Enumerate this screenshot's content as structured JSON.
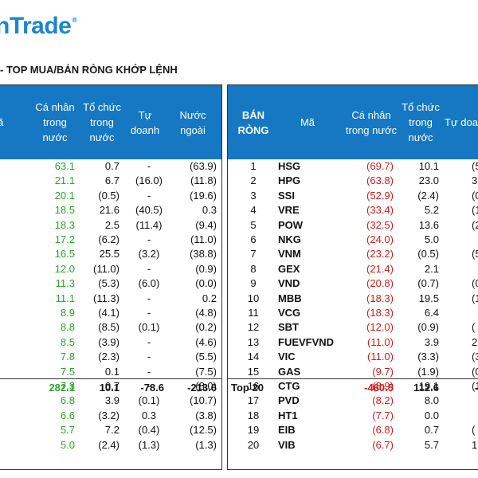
{
  "logo": {
    "text": "nTrade",
    "reg": "®"
  },
  "section_title": "- TOP MUA/BÁN RÒNG KHỚP LỆNH",
  "left_table": {
    "headers": [
      "ã",
      "Cá nhân\ntrong\nnước",
      "Tổ chức\ntrong\nnước",
      "Tự\ndoanh",
      "Nước\nngoài"
    ],
    "rows": [
      [
        "63.1",
        "0.7",
        "-",
        "(63.9)"
      ],
      [
        "21.1",
        "6.7",
        "(16.0)",
        "(11.8)"
      ],
      [
        "20.1",
        "(0.5)",
        "-",
        "(19.6)"
      ],
      [
        "18.5",
        "21.6",
        "(40.5)",
        "0.3"
      ],
      [
        "18.3",
        "2.5",
        "(11.4)",
        "(9.4)"
      ],
      [
        "17.2",
        "(6.2)",
        "-",
        "(11.0)"
      ],
      [
        "16.5",
        "25.5",
        "(3.2)",
        "(38.8)"
      ],
      [
        "12.0",
        "(11.0)",
        "-",
        "(0.9)"
      ],
      [
        "11.3",
        "(5.3)",
        "(6.0)",
        "(0.0)"
      ],
      [
        "11.1",
        "(11.3)",
        "-",
        "0.2"
      ],
      [
        "8.9",
        "(4.1)",
        "-",
        "(4.8)"
      ],
      [
        "8.8",
        "(8.5)",
        "(0.1)",
        "(0.2)"
      ],
      [
        "8.5",
        "(3.9)",
        "-",
        "(4.6)"
      ],
      [
        "7.8",
        "(2.3)",
        "-",
        "(5.5)"
      ],
      [
        "7.5",
        "0.1",
        "-",
        "(7.5)"
      ],
      [
        "7.3",
        "0.7",
        "-",
        "(8.0)"
      ],
      [
        "6.8",
        "3.9",
        "(0.1)",
        "(10.7)"
      ],
      [
        "6.6",
        "(3.2)",
        "0.3",
        "(3.8)"
      ],
      [
        "5.7",
        "7.2",
        "(0.4)",
        "(12.5)"
      ],
      [
        "5.0",
        "(2.4)",
        "(1.3)",
        "(1.3)"
      ]
    ],
    "total": [
      "282.1",
      "10.1",
      "-78.6",
      "-213.6"
    ]
  },
  "right_table": {
    "headers": [
      "BÁN\nRÒNG",
      "Mã",
      "Cá nhân\ntrong nước",
      "Tổ chức\ntrong\nnước",
      "Tự doa"
    ],
    "rows": [
      [
        "1",
        "HSG",
        "(69.7)",
        "10.1",
        "(5"
      ],
      [
        "2",
        "HPG",
        "(63.8)",
        "23.0",
        "3"
      ],
      [
        "3",
        "SSI",
        "(52.9)",
        "(2.4)",
        "(0"
      ],
      [
        "4",
        "VRE",
        "(33.4)",
        "5.2",
        "(1"
      ],
      [
        "5",
        "POW",
        "(32.5)",
        "13.6",
        "(20"
      ],
      [
        "6",
        "NKG",
        "(24.0)",
        "5.0",
        ""
      ],
      [
        "7",
        "VNM",
        "(23.2)",
        "(0.5)",
        "(5"
      ],
      [
        "8",
        "GEX",
        "(21.4)",
        "2.1",
        ""
      ],
      [
        "9",
        "VND",
        "(20.8)",
        "(0.7)",
        "(0"
      ],
      [
        "10",
        "MBB",
        "(18.3)",
        "19.5",
        "(1"
      ],
      [
        "11",
        "VCG",
        "(18.3)",
        "6.4",
        ""
      ],
      [
        "12",
        "SBT",
        "(12.0)",
        "(0.9)",
        "("
      ],
      [
        "13",
        "FUEVFVND",
        "(11.0)",
        "3.9",
        "26"
      ],
      [
        "14",
        "VIC",
        "(11.0)",
        "(3.3)",
        "(3"
      ],
      [
        "15",
        "GAS",
        "(9.7)",
        "(1.9)",
        "(0"
      ],
      [
        "16",
        "CTG",
        "(8.9)",
        "19.1",
        "(1"
      ],
      [
        "17",
        "PVD",
        "(8.2)",
        "8.0",
        ""
      ],
      [
        "18",
        "HT1",
        "(7.7)",
        "0.0",
        ""
      ],
      [
        "19",
        "EIB",
        "(6.8)",
        "0.7",
        "("
      ],
      [
        "20",
        "VIB",
        "(6.7)",
        "5.7",
        "1"
      ]
    ],
    "total": [
      "Top 20",
      "-460.5",
      "112.6",
      "-"
    ]
  }
}
